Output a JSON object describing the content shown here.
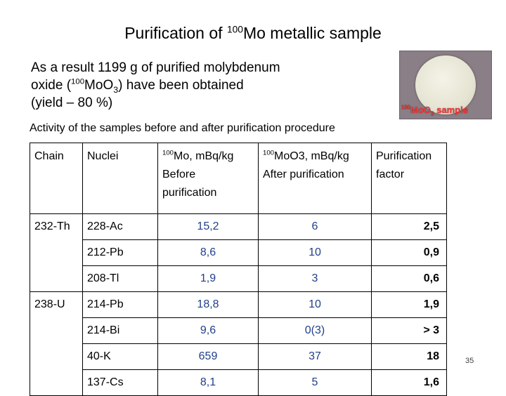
{
  "title": {
    "prefix": "Purification of ",
    "sup": "100",
    "suffix": "Mo metallic sample"
  },
  "result": {
    "line1": "As a result 1199 g of purified molybdenum",
    "line2_prefix": "oxide (",
    "line2_sup": "100",
    "line2_formula": "MoO",
    "line2_sub": "3",
    "line2_suffix": ") have been obtained",
    "line3": "(yield – 80 %)"
  },
  "photo": {
    "label_sup": "100",
    "label_formula": "MoO",
    "label_sub": "3",
    "label_suffix": " sample"
  },
  "caption": "Activity of the samples before and after purification procedure",
  "table": {
    "headers": {
      "chain": "Chain",
      "nuclei": "Nuclei",
      "before_sup": "100",
      "before_line1": "Mo, mBq/kg",
      "before_line2": "Before",
      "before_line3": "purification",
      "after_sup": "100",
      "after_line1": "MoO3, mBq/kg",
      "after_line2": "After purification",
      "pf_line1": "Purification",
      "pf_line2": "factor"
    },
    "rows": [
      {
        "chain": "232-Th",
        "nuclei": "228-Ac",
        "before": "15,2",
        "after": "6",
        "factor": "2,5"
      },
      {
        "chain": "",
        "nuclei": "212-Pb",
        "before": "8,6",
        "after": "10",
        "factor": "0,9"
      },
      {
        "chain": "",
        "nuclei": "208-Tl",
        "before": "1,9",
        "after": "3",
        "factor": "0,6"
      },
      {
        "chain": "238-U",
        "nuclei": "214-Pb",
        "before": "18,8",
        "after": "10",
        "factor": "1,9"
      },
      {
        "chain": "",
        "nuclei": "214-Bi",
        "before": "9,6",
        "after": "0(3)",
        "factor": "> 3"
      },
      {
        "chain": "",
        "nuclei": "40-K",
        "before": "659",
        "after": "37",
        "factor": "18"
      },
      {
        "chain": "",
        "nuclei": "137-Cs",
        "before": "8,1",
        "after": "5",
        "factor": "1,6"
      }
    ]
  },
  "page_number": "35"
}
